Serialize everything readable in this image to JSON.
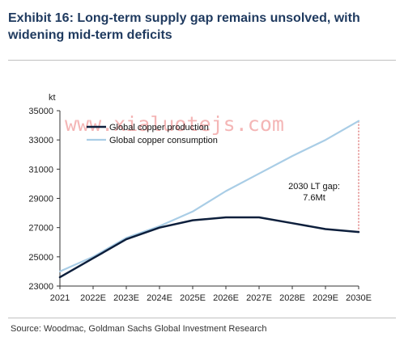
{
  "header": {
    "title": "Exhibit 16: Long-term supply gap remains unsolved, with widening mid-term deficits"
  },
  "source": "Source: Woodmac, Goldman Sachs Global Investment Research",
  "watermark": "www.xialuotejs.com",
  "chart_data": {
    "type": "line",
    "ylabel": "kt",
    "ylim": [
      23000,
      35000
    ],
    "yticks": [
      23000,
      25000,
      27000,
      29000,
      31000,
      33000,
      35000
    ],
    "ytick_labels": [
      "23000",
      "25000",
      "27000",
      "29000",
      "31000",
      "33000",
      "35000"
    ],
    "categories": [
      "2021",
      "2022E",
      "2023E",
      "2024E",
      "2025E",
      "2026E",
      "2027E",
      "2028E",
      "2029E",
      "2030E"
    ],
    "series": [
      {
        "name": "Global copper production",
        "color": "#0d1f3c",
        "values": [
          23600,
          24900,
          26200,
          27000,
          27500,
          27700,
          27700,
          27300,
          26900,
          26700
        ]
      },
      {
        "name": "Global copper consumption",
        "color": "#a9cde6",
        "values": [
          24000,
          25000,
          26300,
          27100,
          28100,
          29500,
          30700,
          31900,
          33000,
          34300
        ]
      }
    ],
    "annotation": {
      "lines": [
        "2030 LT gap:",
        "7.6Mt"
      ],
      "category": "2030E",
      "from": 26700,
      "to": 34300,
      "color": "#d04040"
    },
    "legend_position": "top-left",
    "grid": false
  }
}
